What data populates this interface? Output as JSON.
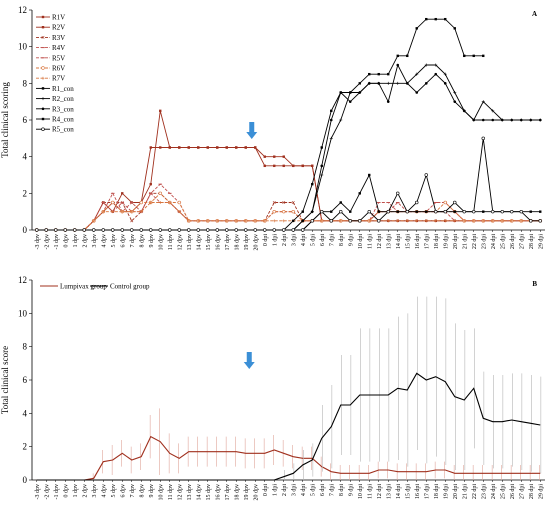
{
  "chart_data": [
    {
      "type": "line",
      "panel_label": "A",
      "ylabel": "Total clinical scoring",
      "ylim": [
        0,
        12
      ],
      "yticks": [
        0,
        2,
        4,
        6,
        8,
        10,
        12
      ],
      "grid": false,
      "legend_position": "top-left",
      "arrow_at": "19 dpv",
      "categories": [
        "-3 dpv",
        "-2 dpv",
        "-1 dpv",
        "0 dpv",
        "1 dpv",
        "2 dpv",
        "3 dpv",
        "4 dpv",
        "5 dpv",
        "6 dpv",
        "7 dpv",
        "8 dpv",
        "9 dpv",
        "10 dpv",
        "11 dpv",
        "12 dpv",
        "13 dpv",
        "14 dpv",
        "15 dpv",
        "16 dpv",
        "17 dpv",
        "18 dpv",
        "19 dpv",
        "20 dpv",
        "0 dpi",
        "1 dpi",
        "2 dpi",
        "3 dpi",
        "4 dpi",
        "5 dpi",
        "6 dpi",
        "7 dpi",
        "8 dpi",
        "9 dpi",
        "10 dpi",
        "11 dpi",
        "12 dpi",
        "13 dpi",
        "14 dpi",
        "15 dpi",
        "16 dpi",
        "17 dpi",
        "18 dpi",
        "19 dpi",
        "20 dpi",
        "21 dpi",
        "22 dpi",
        "23 dpi",
        "24 dpi",
        "25 dpi",
        "26 dpi",
        "27 dpi",
        "28 dpi",
        "29 dpi"
      ],
      "series": [
        {
          "name": "R1V",
          "color": "#a0301e",
          "values": [
            0,
            0,
            0,
            0,
            0,
            0,
            0.5,
            1,
            1.5,
            1,
            1,
            1.5,
            2.5,
            6.5,
            4.5,
            4.5,
            4.5,
            4.5,
            4.5,
            4.5,
            4.5,
            4.5,
            4.5,
            4.5,
            3.5,
            3.5,
            3.5,
            3.5,
            3.5,
            3.5,
            0.5,
            0.5,
            0.5,
            0.5,
            0.5,
            0.5,
            0.5,
            0.5,
            0.5,
            0.5,
            0.5,
            0.5,
            0.5,
            0.5,
            0.5,
            0.5,
            0.5,
            0.5,
            0.5,
            0.5,
            0.5,
            0.5,
            0.5,
            0.5
          ]
        },
        {
          "name": "R2V",
          "color": "#a0301e",
          "values": [
            0,
            0,
            0,
            0,
            0,
            0,
            0.5,
            1.5,
            1,
            2,
            1.5,
            1.5,
            4.5,
            4.5,
            4.5,
            4.5,
            4.5,
            4.5,
            4.5,
            4.5,
            4.5,
            4.5,
            4.5,
            4.5,
            4,
            4,
            4,
            3.5,
            3.5,
            3.5,
            0.5,
            0.5,
            0.5,
            0.5,
            0.5,
            0.5,
            0.5,
            0.5,
            0.5,
            0.5,
            0.5,
            0.5,
            0.5,
            0.5,
            0.5,
            0.5,
            0.5,
            0.5,
            0.5,
            0.5,
            0.5,
            0.5,
            0.5,
            0.5
          ]
        },
        {
          "name": "R3V",
          "color": "#a0301e",
          "values": [
            0,
            0,
            0,
            0,
            0,
            0,
            0.5,
            1.5,
            1.5,
            1.5,
            0.5,
            1,
            2,
            2,
            1.5,
            1,
            0.5,
            0.5,
            0.5,
            0.5,
            0.5,
            0.5,
            0.5,
            0.5,
            0.5,
            1.5,
            1.5,
            1.5,
            0.5,
            0.5,
            0.5,
            0.5,
            0.5,
            0.5,
            0.5,
            0.5,
            1,
            1,
            1,
            1,
            1,
            1,
            1,
            1,
            1,
            0.5,
            0.5,
            0.5,
            0.5,
            0.5,
            0.5,
            0.5,
            0.5,
            0.5
          ]
        },
        {
          "name": "R4V",
          "color": "#c0504d",
          "values": [
            0,
            0,
            0,
            0,
            0,
            0,
            0.5,
            1,
            2,
            1,
            1.5,
            1,
            2,
            1.5,
            1.5,
            1,
            0.5,
            0.5,
            0.5,
            0.5,
            0.5,
            0.5,
            0.5,
            0.5,
            0.5,
            1,
            1,
            1,
            0.5,
            0.5,
            0.5,
            0.5,
            0.5,
            0.5,
            0.5,
            0.5,
            1,
            1,
            1.5,
            1,
            1,
            1,
            1,
            1,
            0.5,
            0.5,
            0.5,
            0.5,
            0.5,
            0.5,
            0.5,
            0.5,
            0.5,
            0.5
          ]
        },
        {
          "name": "R5V",
          "color": "#c0504d",
          "values": [
            0,
            0,
            0,
            0,
            0,
            0,
            0.5,
            1.5,
            1,
            1.5,
            1,
            1,
            2,
            2.5,
            2,
            1.5,
            0.5,
            0.5,
            0.5,
            0.5,
            0.5,
            0.5,
            0.5,
            0.5,
            0.5,
            1,
            1,
            1,
            0.5,
            0.5,
            0.5,
            0.5,
            0.5,
            0.5,
            0.5,
            0.5,
            1.5,
            1.5,
            1,
            1,
            1,
            1,
            1.5,
            1.5,
            1,
            0.5,
            0.5,
            0.5,
            0.5,
            0.5,
            0.5,
            0.5,
            0.5,
            0.5
          ]
        },
        {
          "name": "R6V",
          "color": "#d8743c",
          "values": [
            0,
            0,
            0,
            0,
            0,
            0,
            0.5,
            1,
            1.5,
            1,
            1,
            1.5,
            1.5,
            2,
            1.5,
            1.5,
            0.5,
            0.5,
            0.5,
            0.5,
            0.5,
            0.5,
            0.5,
            0.5,
            0.5,
            1,
            1,
            1,
            0.5,
            0.5,
            0.5,
            0.5,
            0.5,
            0.5,
            0.5,
            0.5,
            1,
            1,
            1,
            1,
            1,
            1,
            1,
            1.5,
            1,
            0.5,
            0.5,
            0.5,
            0.5,
            0.5,
            0.5,
            0.5,
            0.5,
            0.5
          ]
        },
        {
          "name": "R7V",
          "color": "#d8743c",
          "values": [
            0,
            0,
            0,
            0,
            0,
            0,
            0.5,
            1,
            1,
            1,
            1,
            1,
            1.5,
            1.5,
            1.5,
            1,
            0.5,
            0.5,
            0.5,
            0.5,
            0.5,
            0.5,
            0.5,
            0.5,
            0.5,
            0.5,
            0.5,
            0.5,
            0.5,
            0.5,
            0.5,
            0.5,
            0.5,
            0.5,
            0.5,
            0.5,
            0.5,
            0.5,
            0.5,
            0.5,
            0.5,
            0.5,
            0.5,
            0.5,
            0.5,
            0.5,
            0.5,
            0.5,
            0.5,
            0.5,
            0.5,
            0.5,
            0.5,
            0.5
          ]
        },
        {
          "name": "R1_con",
          "color": "#000000",
          "values": [
            0,
            0,
            0,
            0,
            0,
            0,
            0,
            0,
            0,
            0,
            0,
            0,
            0,
            0,
            0,
            0,
            0,
            0,
            0,
            0,
            0,
            0,
            0,
            0,
            0,
            0,
            0,
            0.5,
            1,
            2.5,
            4.5,
            6.5,
            7.5,
            7.5,
            8,
            8.5,
            8.5,
            8.5,
            9.5,
            9.5,
            11,
            11.5,
            11.5,
            11.5,
            11,
            9.5,
            9.5,
            9.5,
            null,
            null,
            null,
            null,
            null,
            null
          ]
        },
        {
          "name": "R2_con",
          "color": "#000000",
          "values": [
            0,
            0,
            0,
            0,
            0,
            0,
            0,
            0,
            0,
            0,
            0,
            0,
            0,
            0,
            0,
            0,
            0,
            0,
            0,
            0,
            0,
            0,
            0,
            0,
            0,
            0,
            0,
            0,
            0.5,
            1,
            3,
            5,
            6,
            7.5,
            7.5,
            8,
            8,
            8,
            8,
            8,
            8.5,
            9,
            9,
            8.5,
            7.5,
            6.5,
            6,
            7,
            6.5,
            6,
            6,
            6,
            6,
            6
          ]
        },
        {
          "name": "R3_con",
          "color": "#000000",
          "values": [
            0,
            0,
            0,
            0,
            0,
            0,
            0,
            0,
            0,
            0,
            0,
            0,
            0,
            0,
            0,
            0,
            0,
            0,
            0,
            0,
            0,
            0,
            0,
            0,
            0,
            0,
            0,
            0,
            0.5,
            1,
            3.5,
            6,
            7.5,
            7,
            7.5,
            8,
            8,
            7,
            9,
            8,
            7.5,
            8,
            8.5,
            8,
            7,
            6.5,
            6,
            6,
            6,
            6,
            6,
            6,
            6,
            6
          ]
        },
        {
          "name": "R4_con",
          "color": "#000000",
          "values": [
            0,
            0,
            0,
            0,
            0,
            0,
            0,
            0,
            0,
            0,
            0,
            0,
            0,
            0,
            0,
            0,
            0,
            0,
            0,
            0,
            0,
            0,
            0,
            0,
            0,
            0,
            0,
            0,
            0,
            0.5,
            1,
            1,
            1.5,
            1,
            2,
            3,
            1,
            1,
            1,
            1,
            1,
            1,
            1,
            1,
            1,
            1,
            1,
            1,
            1,
            1,
            1,
            1,
            1,
            1
          ]
        },
        {
          "name": "R5_con",
          "color": "#000000",
          "values": [
            0,
            0,
            0,
            0,
            0,
            0,
            0,
            0,
            0,
            0,
            0,
            0,
            0,
            0,
            0,
            0,
            0,
            0,
            0,
            0,
            0,
            0,
            0,
            0,
            0,
            0,
            0,
            0,
            0,
            0.5,
            1,
            0.5,
            1,
            0.5,
            0.5,
            1,
            0.5,
            1,
            2,
            1,
            1.5,
            3,
            1,
            1,
            1.5,
            1,
            1,
            5,
            1,
            1,
            1,
            1,
            0.5,
            0.5
          ]
        }
      ]
    },
    {
      "type": "line",
      "panel_label": "B",
      "ylabel": "Total clinical score",
      "ylim": [
        0,
        12
      ],
      "yticks": [
        0,
        2,
        4,
        6,
        8,
        10,
        12
      ],
      "grid": false,
      "legend_position": "top-left",
      "arrow_at": "20 dpv",
      "categories": [
        "-3 dpv",
        "-2 dpv",
        "-1 dpv",
        "0 dpv",
        "1 dpv",
        "2 dpv",
        "3 dpv",
        "4 dpv",
        "5 dpv",
        "6 dpv",
        "7 dpv",
        "8 dpv",
        "9 dpv",
        "10 dpv",
        "11 dpv",
        "12 dpv",
        "13 dpv",
        "14 dpv",
        "15 dpv",
        "16 dpv",
        "17 dpv",
        "18 dpv",
        "19 dpv",
        "20 dpv",
        "0 dpi",
        "1 dpi",
        "2 dpi",
        "3 dpi",
        "4 dpi",
        "5 dpi",
        "6 dpi",
        "7 dpi",
        "8 dpi",
        "9 dpi",
        "10 dpi",
        "11 dpi",
        "12 dpi",
        "13 dpi",
        "14 dpi",
        "15 dpi",
        "16 dpi",
        "17 dpi",
        "18 dpi",
        "19 dpi",
        "20 dpi",
        "21 dpi",
        "22 dpi",
        "23 dpi",
        "24 dpi",
        "25 dpi",
        "26 dpi",
        "27 dpi",
        "28 dpi",
        "29 dpi"
      ],
      "series": [
        {
          "name": "Lumpivax group",
          "color": "#a0301e",
          "values": [
            0,
            0,
            0,
            0,
            0,
            0,
            0.1,
            1.1,
            1.2,
            1.6,
            1.2,
            1.4,
            2.6,
            2.3,
            1.6,
            1.3,
            1.7,
            1.7,
            1.7,
            1.7,
            1.7,
            1.7,
            1.6,
            1.6,
            1.6,
            1.8,
            1.6,
            1.4,
            1.3,
            1.3,
            0.8,
            0.5,
            0.4,
            0.4,
            0.4,
            0.4,
            0.6,
            0.6,
            0.5,
            0.5,
            0.5,
            0.5,
            0.6,
            0.6,
            0.4,
            0.4,
            0.4,
            0.4,
            0.4,
            0.4,
            0.4,
            0.4,
            0.4,
            0.4
          ],
          "errors": [
            0,
            0,
            0,
            0,
            0,
            0,
            0.3,
            0.7,
            0.9,
            0.8,
            0.8,
            0.8,
            1.3,
            2,
            1.2,
            0.9,
            0.9,
            0.9,
            0.9,
            0.9,
            0.9,
            0.9,
            0.9,
            0.9,
            0.9,
            0.9,
            0.8,
            0.7,
            0.7,
            0.7,
            0.6,
            0.5,
            0.5,
            0.5,
            0.5,
            0.5,
            0.5,
            0.5,
            0.5,
            0.5,
            0.5,
            0.5,
            0.5,
            0.5,
            0.5,
            0.5,
            0.5,
            0.5,
            0.5,
            0.5,
            0.5,
            0.5,
            0.5,
            0.5
          ]
        },
        {
          "name": "Control group",
          "color": "#000000",
          "values": [
            0,
            0,
            0,
            0,
            0,
            0,
            0,
            0,
            0,
            0,
            0,
            0,
            0,
            0,
            0,
            0,
            0,
            0,
            0,
            0,
            0,
            0,
            0,
            0,
            0,
            0,
            0.2,
            0.4,
            0.9,
            1.2,
            2.5,
            3.2,
            4.5,
            4.5,
            5.1,
            5.1,
            5.1,
            5.1,
            5.5,
            5.4,
            6.4,
            6,
            6.2,
            5.9,
            5,
            4.8,
            5.5,
            3.7,
            3.5,
            3.5,
            3.6,
            3.5,
            3.4,
            3.3
          ],
          "errors": [
            0,
            0,
            0,
            0,
            0,
            0,
            0,
            0,
            0,
            0,
            0,
            0,
            0,
            0,
            0,
            0,
            0,
            0,
            0,
            0,
            0,
            0,
            0,
            0,
            0,
            0,
            0.4,
            0.6,
            0.9,
            1,
            2,
            2.5,
            3,
            3,
            4,
            4,
            4,
            4,
            4.3,
            4.6,
            4.6,
            5,
            4.8,
            5,
            4.4,
            4.2,
            3.6,
            2.8,
            2.8,
            2.8,
            2.8,
            2.9,
            2.9,
            2.9
          ]
        }
      ]
    }
  ]
}
